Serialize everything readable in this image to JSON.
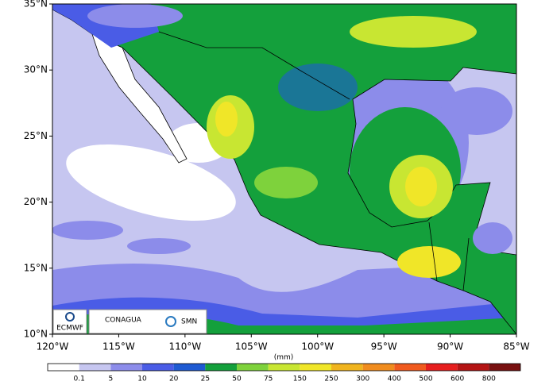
{
  "map": {
    "xlim": [
      -120,
      -85
    ],
    "ylim": [
      10,
      35
    ],
    "xticks": [
      {
        "value": -120,
        "label": "120°W"
      },
      {
        "value": -115,
        "label": "115°W"
      },
      {
        "value": -110,
        "label": "110°W"
      },
      {
        "value": -105,
        "label": "105°W"
      },
      {
        "value": -100,
        "label": "100°W"
      },
      {
        "value": -95,
        "label": "95°W"
      },
      {
        "value": -90,
        "label": "90°W"
      },
      {
        "value": -85,
        "label": "85°W"
      }
    ],
    "yticks": [
      {
        "value": 10,
        "label": "10°N"
      },
      {
        "value": 15,
        "label": "15°N"
      },
      {
        "value": 20,
        "label": "20°N"
      },
      {
        "value": 25,
        "label": "25°N"
      },
      {
        "value": 30,
        "label": "30°N"
      },
      {
        "value": 35,
        "label": "35°N"
      }
    ]
  },
  "colorbar": {
    "unit": "(mm)",
    "labels": [
      0.1,
      5,
      10,
      20,
      25,
      50,
      75,
      150,
      250,
      300,
      400,
      500,
      600,
      800
    ],
    "colors": [
      "#ffffff",
      "#c6c6f0",
      "#8c8cea",
      "#4a5ce6",
      "#1e5ad2",
      "#14a03c",
      "#7ed23c",
      "#c8e632",
      "#f0e628",
      "#f0b41e",
      "#f08c1e",
      "#f05a1e",
      "#e61e1e",
      "#b41414",
      "#781010"
    ]
  },
  "logos": {
    "ecmwf": "ECMWF",
    "conagua": "CONAGUA",
    "smn": "SMN"
  }
}
